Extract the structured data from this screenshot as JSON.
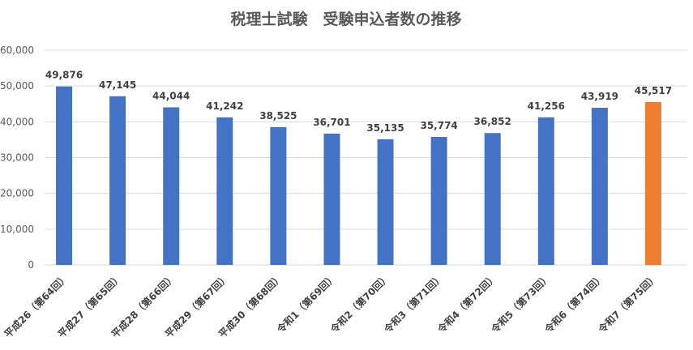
{
  "chart_data": {
    "type": "bar",
    "title": "税理士試験　受験申込者数の推移",
    "xlabel": "",
    "ylabel": "",
    "ylim": [
      0,
      60000
    ],
    "yticks": [
      0,
      10000,
      20000,
      30000,
      40000,
      50000,
      60000
    ],
    "grid": true,
    "legend": "none",
    "categories": [
      "平成26（第64回）",
      "平成27（第65回）",
      "平成28（第66回）",
      "平成29（第67回）",
      "平成30（第68回）",
      "令和1（第69回）",
      "令和2（第70回）",
      "令和3（第71回）",
      "令和4（第72回）",
      "令和5（第73回）",
      "令和6（第74回）",
      "令和7（第75回）"
    ],
    "values": [
      49876,
      47145,
      44044,
      41242,
      38525,
      36701,
      35135,
      35774,
      36852,
      41256,
      43919,
      45517
    ],
    "colors": {
      "default": "#4472c4",
      "highlight": "#ed7d31"
    },
    "highlight_index": 11
  }
}
